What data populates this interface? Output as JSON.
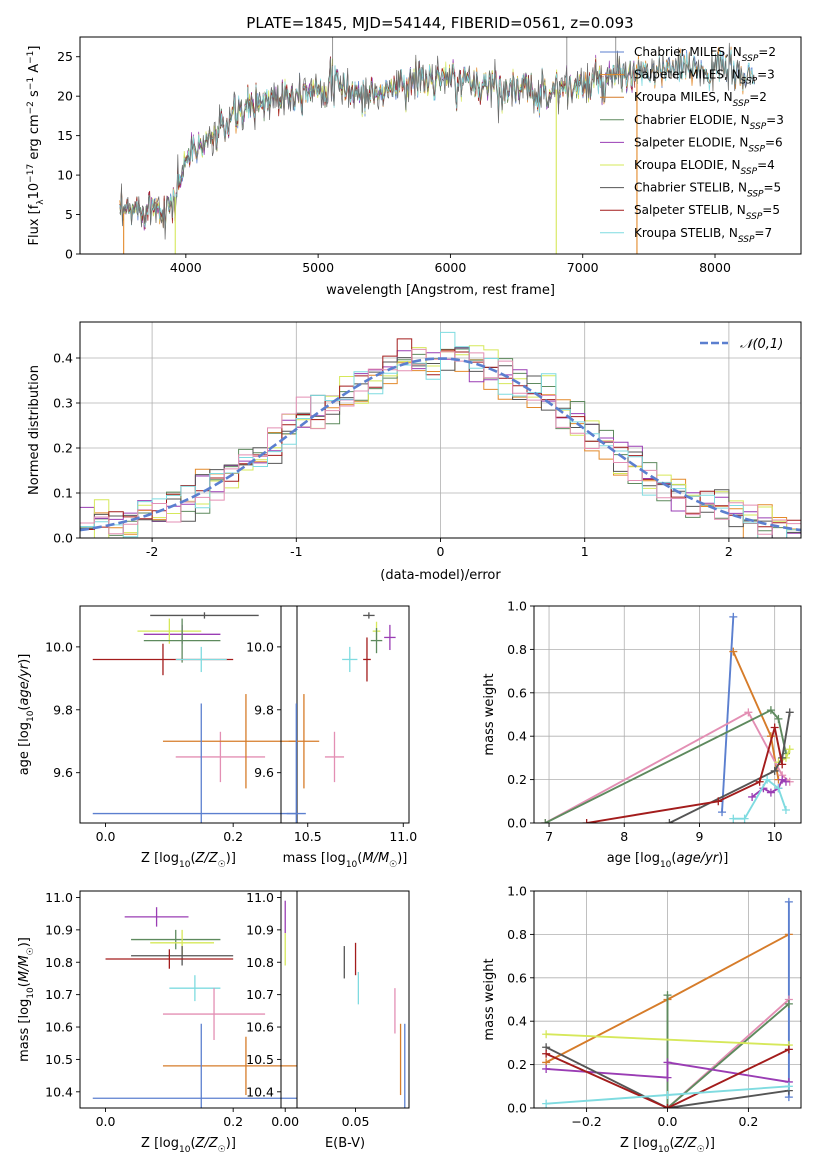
{
  "title": "PLATE=1845, MJD=54144, FIBERID=0561, z=0.093",
  "colors": {
    "Chabrier MILES": "#5b7fcf",
    "Salpeter MILES": "#e38a2b",
    "Kroupa MILES": "#d67c2a",
    "Chabrier ELODIE": "#5e8a5e",
    "Salpeter ELODIE": "#9a3db4",
    "Kroupa ELODIE": "#d6e85a",
    "Chabrier STELIB": "#555555",
    "Salpeter STELIB": "#a31c1c",
    "Kroupa STELIB": "#7fdbe0",
    "pink": "#e38fb4"
  },
  "chart_data": [
    {
      "id": "spectrum",
      "type": "line",
      "title": "PLATE=1845, MJD=54144, FIBERID=0561, z=0.093",
      "xlabel": "wavelength [Angstrom, rest frame]",
      "ylabel": "Flux [fλ10⁻¹⁷ erg cm⁻² s⁻¹ A⁻¹]",
      "xlim": [
        3200,
        8650
      ],
      "ylim": [
        0,
        27.5
      ],
      "xticks": [
        4000,
        5000,
        6000,
        7000,
        8000
      ],
      "yticks": [
        0,
        5,
        10,
        15,
        20,
        25
      ],
      "legend_position": "upper right",
      "legend": [
        "Chabrier MILES, N_SSP=2",
        "Salpeter MILES, N_SSP=3",
        "Kroupa MILES, N_SSP=2",
        "Chabrier ELODIE, N_SSP=3",
        "Salpeter ELODIE, N_SSP=6",
        "Kroupa ELODIE, N_SSP=4",
        "Chabrier STELIB, N_SSP=5",
        "Salpeter STELIB, N_SSP=5",
        "Kroupa STELIB, N_SSP=7"
      ],
      "continuum": {
        "x": [
          3500,
          3700,
          3900,
          4000,
          4200,
          4500,
          4800,
          5100,
          5400,
          5700,
          6000,
          6300,
          6600,
          6900,
          7200,
          7500,
          7800,
          8100,
          8300
        ],
        "y": [
          5,
          6,
          6,
          12,
          15,
          19,
          20.5,
          21.5,
          20,
          22,
          22,
          21.5,
          20.5,
          21,
          22,
          23,
          23.5,
          23.5,
          22
        ]
      }
    },
    {
      "id": "residuals",
      "type": "histogram",
      "xlabel": "(data-model)/error",
      "ylabel": "Normed distribution",
      "xlim": [
        -2.5,
        2.5
      ],
      "ylim": [
        0,
        0.48
      ],
      "xticks": [
        -2,
        -1,
        0,
        1,
        2
      ],
      "yticks": [
        0.0,
        0.1,
        0.2,
        0.3,
        0.4
      ],
      "legend": [
        "𝒩(0,1)"
      ],
      "legend_position": "upper right",
      "bin_width": 0.1,
      "gaussian": {
        "mean": 0,
        "sigma": 1
      }
    },
    {
      "id": "age_vs_Z",
      "type": "errorbar",
      "xlabel": "Z [log10(Z/Z☉)]",
      "ylabel": "age  [log10(age/yr)]",
      "xlim": [
        -0.04,
        0.3
      ],
      "ylim": [
        9.44,
        10.13
      ],
      "xticks": [
        0.0,
        0.2
      ],
      "yticks": [
        9.6,
        9.8,
        10.0
      ],
      "points": [
        {
          "x": 0.155,
          "y": 10.1,
          "xerr": 0.085,
          "yerr": 0.01,
          "color": "#555555"
        },
        {
          "x": 0.12,
          "y": 10.04,
          "xerr": 0.06,
          "yerr": 0.03,
          "color": "#9a3db4"
        },
        {
          "x": 0.1,
          "y": 10.05,
          "xerr": 0.05,
          "yerr": 0.04,
          "color": "#d6e85a"
        },
        {
          "x": 0.12,
          "y": 10.02,
          "xerr": 0.06,
          "yerr": 0.07,
          "color": "#5e8a5e"
        },
        {
          "x": 0.09,
          "y": 9.96,
          "xerr": 0.11,
          "yerr": 0.05,
          "color": "#a31c1c"
        },
        {
          "x": 0.15,
          "y": 9.96,
          "xerr": 0.04,
          "yerr": 0.04,
          "color": "#7fdbe0"
        },
        {
          "x": 0.18,
          "y": 9.65,
          "xerr": 0.07,
          "yerr": 0.08,
          "color": "#e38fb4"
        },
        {
          "x": 0.22,
          "y": 9.7,
          "xerr": 0.13,
          "yerr": 0.15,
          "color": "#d67c2a"
        },
        {
          "x": 0.15,
          "y": 9.47,
          "xerr": 0.17,
          "yerr": 0.35,
          "color": "#5b7fcf"
        }
      ]
    },
    {
      "id": "age_vs_mass",
      "type": "errorbar",
      "xlabel": "mass [log10(M/M☉)]",
      "ylabel": "",
      "xlim": [
        10.36,
        11.03
      ],
      "ylim": [
        9.44,
        10.13
      ],
      "xticks": [
        10.5,
        11.0
      ],
      "yticks": [
        9.6,
        9.8,
        10.0
      ],
      "points": [
        {
          "x": 10.82,
          "y": 10.1,
          "xerr": 0.03,
          "yerr": 0.01,
          "color": "#555555"
        },
        {
          "x": 10.93,
          "y": 10.03,
          "xerr": 0.03,
          "yerr": 0.04,
          "color": "#9a3db4"
        },
        {
          "x": 10.86,
          "y": 10.05,
          "xerr": 0.02,
          "yerr": 0.03,
          "color": "#d6e85a"
        },
        {
          "x": 10.86,
          "y": 10.02,
          "xerr": 0.03,
          "yerr": 0.04,
          "color": "#5e8a5e"
        },
        {
          "x": 10.81,
          "y": 9.96,
          "xerr": 0.02,
          "yerr": 0.07,
          "color": "#a31c1c"
        },
        {
          "x": 10.72,
          "y": 9.96,
          "xerr": 0.04,
          "yerr": 0.04,
          "color": "#7fdbe0"
        },
        {
          "x": 10.64,
          "y": 9.65,
          "xerr": 0.05,
          "yerr": 0.08,
          "color": "#e38fb4"
        },
        {
          "x": 10.48,
          "y": 9.7,
          "xerr": 0.08,
          "yerr": 0.15,
          "color": "#d67c2a"
        },
        {
          "x": 10.44,
          "y": 9.47,
          "xerr": 0.05,
          "yerr": 0.35,
          "color": "#5b7fcf"
        }
      ]
    },
    {
      "id": "weight_vs_age",
      "type": "line",
      "xlabel": "age  [log10(age/yr)]",
      "ylabel": "mass weight",
      "xlim": [
        6.8,
        10.35
      ],
      "ylim": [
        0,
        1.0
      ],
      "xticks": [
        7,
        8,
        9,
        10
      ],
      "yticks": [
        0.0,
        0.2,
        0.4,
        0.6,
        0.8,
        1.0
      ],
      "series": [
        {
          "color": "#5b7fcf",
          "x": [
            9.3,
            9.45
          ],
          "y": [
            0.05,
            0.95
          ]
        },
        {
          "color": "#d67c2a",
          "x": [
            9.45,
            9.95,
            10.05
          ],
          "y": [
            0.79,
            0.4,
            0.2
          ]
        },
        {
          "color": "#e38fb4",
          "x": [
            6.95,
            9.65,
            10.1,
            10.2
          ],
          "y": [
            0.0,
            0.51,
            0.22,
            0.19
          ]
        },
        {
          "color": "#5e8a5e",
          "x": [
            6.95,
            9.95,
            10.05,
            10.15
          ],
          "y": [
            0.0,
            0.52,
            0.48,
            0.32
          ]
        },
        {
          "color": "#9a3db4",
          "x": [
            9.7,
            9.85,
            9.95,
            10.05,
            10.1,
            10.15
          ],
          "y": [
            0.12,
            0.16,
            0.14,
            0.16,
            0.2,
            0.19
          ]
        },
        {
          "color": "#d6e85a",
          "x": [
            10.05,
            10.15,
            10.2
          ],
          "y": [
            0.28,
            0.3,
            0.34
          ]
        },
        {
          "color": "#555555",
          "x": [
            8.6,
            10.0,
            10.1,
            10.2
          ],
          "y": [
            0.0,
            0.24,
            0.3,
            0.51
          ]
        },
        {
          "color": "#a31c1c",
          "x": [
            7.5,
            9.25,
            9.8,
            10.0,
            10.1
          ],
          "y": [
            0.0,
            0.1,
            0.19,
            0.44,
            0.27
          ]
        },
        {
          "color": "#7fdbe0",
          "x": [
            9.45,
            9.6,
            9.9,
            10.05,
            10.15
          ],
          "y": [
            0.02,
            0.02,
            0.2,
            0.16,
            0.06
          ]
        }
      ]
    },
    {
      "id": "mass_vs_Z",
      "type": "errorbar",
      "xlabel": "Z [log10(Z/Z☉)]",
      "ylabel": "mass [log10(M/M☉)]",
      "xlim": [
        -0.04,
        0.3
      ],
      "ylim": [
        10.35,
        11.02
      ],
      "xticks": [
        0.0,
        0.2
      ],
      "yticks": [
        10.4,
        10.5,
        10.6,
        10.7,
        10.8,
        10.9,
        11.0
      ],
      "points": [
        {
          "x": 0.08,
          "y": 10.94,
          "xerr": 0.05,
          "yerr": 0.03,
          "color": "#9a3db4"
        },
        {
          "x": 0.11,
          "y": 10.87,
          "xerr": 0.07,
          "yerr": 0.03,
          "color": "#5e8a5e"
        },
        {
          "x": 0.12,
          "y": 10.86,
          "xerr": 0.05,
          "yerr": 0.04,
          "color": "#d6e85a"
        },
        {
          "x": 0.12,
          "y": 10.82,
          "xerr": 0.08,
          "yerr": 0.03,
          "color": "#555555"
        },
        {
          "x": 0.1,
          "y": 10.81,
          "xerr": 0.1,
          "yerr": 0.03,
          "color": "#a31c1c"
        },
        {
          "x": 0.14,
          "y": 10.72,
          "xerr": 0.04,
          "yerr": 0.04,
          "color": "#7fdbe0"
        },
        {
          "x": 0.17,
          "y": 10.64,
          "xerr": 0.08,
          "yerr": 0.08,
          "color": "#e38fb4"
        },
        {
          "x": 0.22,
          "y": 10.48,
          "xerr": 0.13,
          "yerr": 0.09,
          "color": "#d67c2a"
        },
        {
          "x": 0.15,
          "y": 10.38,
          "xerr": 0.17,
          "yerr": 0.23,
          "color": "#5b7fcf"
        }
      ]
    },
    {
      "id": "mass_vs_ebv",
      "type": "errorbar",
      "xlabel": "E(B-V)",
      "ylabel": "",
      "xlim": [
        -0.003,
        0.088
      ],
      "ylim": [
        10.35,
        11.02
      ],
      "xticks": [
        0.0,
        0.05
      ],
      "xticklabels": [
        "0.00",
        "0.05"
      ],
      "yticks": [
        10.4,
        10.5,
        10.6,
        10.7,
        10.8,
        10.9,
        11.0
      ],
      "points": [
        {
          "x": 0.0,
          "y": 10.94,
          "xerr": 0,
          "yerr": 0.05,
          "color": "#9a3db4"
        },
        {
          "x": 0.0,
          "y": 10.84,
          "xerr": 0,
          "yerr": 0.05,
          "color": "#d6e85a"
        },
        {
          "x": 0.05,
          "y": 10.81,
          "xerr": 0,
          "yerr": 0.05,
          "color": "#a31c1c"
        },
        {
          "x": 0.042,
          "y": 10.8,
          "xerr": 0,
          "yerr": 0.05,
          "color": "#555555"
        },
        {
          "x": 0.052,
          "y": 10.72,
          "xerr": 0,
          "yerr": 0.05,
          "color": "#7fdbe0"
        },
        {
          "x": 0.078,
          "y": 10.65,
          "xerr": 0,
          "yerr": 0.07,
          "color": "#e38fb4"
        },
        {
          "x": 0.082,
          "y": 10.5,
          "xerr": 0,
          "yerr": 0.11,
          "color": "#d67c2a"
        },
        {
          "x": 0.085,
          "y": 10.47,
          "xerr": 0,
          "yerr": 0.14,
          "color": "#5b7fcf"
        }
      ]
    },
    {
      "id": "weight_vs_Z",
      "type": "line",
      "xlabel": "Z [log10(Z/Z☉)]",
      "ylabel": "mass weight",
      "xlim": [
        -0.33,
        0.33
      ],
      "ylim": [
        0,
        1.0
      ],
      "xticks": [
        -0.2,
        0.0,
        0.2
      ],
      "xticklabels": [
        "−0.2",
        "0.0",
        "0.2"
      ],
      "yticks": [
        0.0,
        0.2,
        0.4,
        0.6,
        0.8,
        1.0
      ],
      "series": [
        {
          "color": "#d67c2a",
          "x": [
            -0.3,
            0.0,
            0.3
          ],
          "y": [
            0.21,
            0.5,
            0.8
          ]
        },
        {
          "color": "#5b7fcf",
          "x": [
            0.3,
            0.3
          ],
          "y": [
            0.05,
            0.95
          ]
        },
        {
          "color": "#e38fb4",
          "x": [
            0.0,
            0.3
          ],
          "y": [
            0.0,
            0.5
          ]
        },
        {
          "color": "#5e8a5e",
          "x": [
            0.0,
            0.0,
            0.3
          ],
          "y": [
            0.52,
            0.0,
            0.48
          ]
        },
        {
          "color": "#d6e85a",
          "x": [
            -0.3,
            0.3
          ],
          "y": [
            0.34,
            0.29
          ]
        },
        {
          "color": "#9a3db4",
          "x": [
            -0.3,
            0.0,
            0.0,
            0.3
          ],
          "y": [
            0.18,
            0.14,
            0.21,
            0.12
          ]
        },
        {
          "color": "#555555",
          "x": [
            -0.3,
            0.0,
            0.3
          ],
          "y": [
            0.28,
            0.0,
            0.08
          ]
        },
        {
          "color": "#a31c1c",
          "x": [
            -0.3,
            0.0,
            0.3
          ],
          "y": [
            0.25,
            0.0,
            0.27
          ]
        },
        {
          "color": "#7fdbe0",
          "x": [
            -0.3,
            0.0,
            0.3
          ],
          "y": [
            0.02,
            0.06,
            0.1
          ]
        }
      ]
    }
  ]
}
